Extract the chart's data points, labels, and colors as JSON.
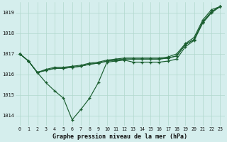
{
  "title": "Graphe pression niveau de la mer (hPa)",
  "bg_color": "#d5eeed",
  "grid_color": "#b0d8cc",
  "line_color": "#1a5e30",
  "xlim_min": -0.5,
  "xlim_max": 23.5,
  "ylim_min": 1013.5,
  "ylim_max": 1019.5,
  "yticks": [
    1014,
    1015,
    1016,
    1017,
    1018,
    1019
  ],
  "xticks": [
    0,
    1,
    2,
    3,
    4,
    5,
    6,
    7,
    8,
    9,
    10,
    11,
    12,
    13,
    14,
    15,
    16,
    17,
    18,
    19,
    20,
    21,
    22,
    23
  ],
  "series": [
    [
      1017.0,
      1016.65,
      1016.1,
      1016.2,
      1016.3,
      1016.3,
      1016.35,
      1016.4,
      1016.5,
      1016.55,
      1016.65,
      1016.7,
      1016.75,
      1016.75,
      1016.75,
      1016.75,
      1016.75,
      1016.8,
      1016.9,
      1017.45,
      1017.7,
      1018.55,
      1019.05,
      1019.3
    ],
    [
      1017.0,
      1016.65,
      1016.1,
      1016.2,
      1016.3,
      1016.3,
      1016.35,
      1016.4,
      1016.5,
      1016.55,
      1016.65,
      1016.7,
      1016.75,
      1016.75,
      1016.75,
      1016.75,
      1016.75,
      1016.8,
      1016.9,
      1017.45,
      1017.7,
      1018.55,
      1019.05,
      1019.3
    ],
    [
      1017.0,
      1016.65,
      1016.1,
      1016.25,
      1016.35,
      1016.35,
      1016.4,
      1016.45,
      1016.55,
      1016.6,
      1016.7,
      1016.75,
      1016.8,
      1016.8,
      1016.8,
      1016.8,
      1016.8,
      1016.85,
      1017.0,
      1017.5,
      1017.8,
      1018.65,
      1019.15,
      1019.3
    ],
    [
      1017.0,
      1016.65,
      1016.1,
      1015.6,
      1015.2,
      1014.85,
      1013.8,
      1014.3,
      1014.85,
      1015.6,
      1016.6,
      1016.65,
      1016.7,
      1016.6,
      1016.6,
      1016.6,
      1016.6,
      1016.65,
      1016.75,
      1017.35,
      1017.65,
      1018.5,
      1019.0,
      1019.3
    ]
  ]
}
